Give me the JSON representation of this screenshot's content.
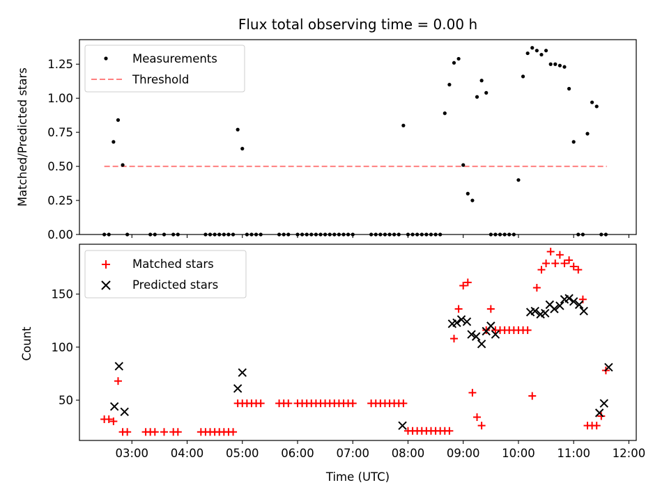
{
  "figure": {
    "title": "Flux total observing time = 0.00 h",
    "xlabel": "Time (UTC)"
  },
  "colors": {
    "measurement": "#000000",
    "threshold": "#ff7f7f",
    "matched": "#ff0000",
    "predicted": "#000000"
  },
  "chart_data": [
    {
      "type": "scatter",
      "panel": "top",
      "ylabel": "Matched/Predicted stars",
      "xlim": [
        "02:03",
        "12:08"
      ],
      "ylim": [
        0,
        1.43
      ],
      "x_ticks": [
        "03:00",
        "04:00",
        "05:00",
        "06:00",
        "07:00",
        "08:00",
        "09:00",
        "10:00",
        "11:00",
        "12:00"
      ],
      "y_ticks": [
        "0.00",
        "0.25",
        "0.50",
        "0.75",
        "1.00",
        "1.25"
      ],
      "legend": {
        "location": "upper left",
        "entries": [
          "Measurements",
          "Threshold"
        ]
      },
      "series": [
        {
          "name": "Measurements",
          "x": [
            "02:30",
            "02:35",
            "02:40",
            "02:45",
            "02:50",
            "02:55",
            "03:20",
            "03:25",
            "03:35",
            "03:45",
            "03:50",
            "04:20",
            "04:25",
            "04:30",
            "04:35",
            "04:40",
            "04:45",
            "04:50",
            "04:55",
            "05:00",
            "05:05",
            "05:10",
            "05:15",
            "05:20",
            "05:40",
            "05:45",
            "05:50",
            "06:00",
            "06:05",
            "06:10",
            "06:15",
            "06:20",
            "06:25",
            "06:30",
            "06:35",
            "06:40",
            "06:45",
            "06:50",
            "06:55",
            "07:00",
            "07:20",
            "07:25",
            "07:30",
            "07:35",
            "07:40",
            "07:45",
            "07:50",
            "07:55",
            "08:00",
            "08:05",
            "08:10",
            "08:15",
            "08:20",
            "08:25",
            "08:30",
            "08:35",
            "08:40",
            "08:45",
            "08:50",
            "08:55",
            "09:00",
            "09:05",
            "09:10",
            "09:15",
            "09:20",
            "09:25",
            "09:30",
            "09:35",
            "09:40",
            "09:45",
            "09:50",
            "09:55",
            "10:00",
            "10:05",
            "10:10",
            "10:15",
            "10:20",
            "10:25",
            "10:30",
            "10:35",
            "10:40",
            "10:45",
            "10:50",
            "10:55",
            "11:00",
            "11:05",
            "11:10",
            "11:15",
            "11:20",
            "11:25",
            "11:30",
            "11:35"
          ],
          "y": [
            0.0,
            0.0,
            0.68,
            0.84,
            0.51,
            0.0,
            0.0,
            0.0,
            0.0,
            0.0,
            0.0,
            0.0,
            0.0,
            0.0,
            0.0,
            0.0,
            0.0,
            0.0,
            0.77,
            0.63,
            0.0,
            0.0,
            0.0,
            0.0,
            0.0,
            0.0,
            0.0,
            0.0,
            0.0,
            0.0,
            0.0,
            0.0,
            0.0,
            0.0,
            0.0,
            0.0,
            0.0,
            0.0,
            0.0,
            0.0,
            0.0,
            0.0,
            0.0,
            0.0,
            0.0,
            0.0,
            0.0,
            0.8,
            0.0,
            0.0,
            0.0,
            0.0,
            0.0,
            0.0,
            0.0,
            0.0,
            0.89,
            1.1,
            1.26,
            1.29,
            0.51,
            0.3,
            0.25,
            1.01,
            1.13,
            1.04,
            0.0,
            0.0,
            0.0,
            0.0,
            0.0,
            0.0,
            0.4,
            1.16,
            1.33,
            1.37,
            1.35,
            1.32,
            1.35,
            1.25,
            1.25,
            1.24,
            1.23,
            1.07,
            0.68,
            0.0,
            0.0,
            0.74,
            0.97,
            0.94,
            0.0,
            0.0
          ]
        },
        {
          "name": "Threshold",
          "x": [
            "02:30",
            "11:36"
          ],
          "y": [
            0.5,
            0.5
          ]
        }
      ]
    },
    {
      "type": "scatter",
      "panel": "bottom",
      "ylabel": "Count",
      "xlim": [
        "02:03",
        "12:08"
      ],
      "ylim": [
        12,
        197
      ],
      "x_ticks": [
        "03:00",
        "04:00",
        "05:00",
        "06:00",
        "07:00",
        "08:00",
        "09:00",
        "10:00",
        "11:00",
        "12:00"
      ],
      "y_ticks": [
        "50",
        "100",
        "150"
      ],
      "legend": {
        "location": "upper left",
        "entries": [
          "Matched stars",
          "Predicted stars"
        ]
      },
      "series": [
        {
          "name": "Matched stars",
          "x": [
            "02:30",
            "02:35",
            "02:40",
            "02:45",
            "02:50",
            "02:55",
            "03:15",
            "03:20",
            "03:25",
            "03:35",
            "03:45",
            "03:50",
            "04:15",
            "04:20",
            "04:25",
            "04:30",
            "04:35",
            "04:40",
            "04:45",
            "04:50",
            "04:55",
            "05:00",
            "05:05",
            "05:10",
            "05:15",
            "05:20",
            "05:40",
            "05:45",
            "05:50",
            "06:00",
            "06:05",
            "06:10",
            "06:15",
            "06:20",
            "06:25",
            "06:30",
            "06:35",
            "06:40",
            "06:45",
            "06:50",
            "06:55",
            "07:00",
            "07:20",
            "07:25",
            "07:30",
            "07:35",
            "07:40",
            "07:45",
            "07:50",
            "07:55",
            "08:00",
            "08:05",
            "08:10",
            "08:15",
            "08:20",
            "08:25",
            "08:30",
            "08:35",
            "08:40",
            "08:45",
            "08:50",
            "08:55",
            "09:00",
            "09:05",
            "09:10",
            "09:15",
            "09:20",
            "09:25",
            "09:30",
            "09:35",
            "09:40",
            "09:45",
            "09:50",
            "09:55",
            "10:00",
            "10:05",
            "10:10",
            "10:15",
            "10:20",
            "10:25",
            "10:30",
            "10:35",
            "10:40",
            "10:45",
            "10:50",
            "10:55",
            "11:00",
            "11:05",
            "11:10",
            "11:15",
            "11:20",
            "11:25",
            "11:30",
            "11:35"
          ],
          "y": [
            32,
            32,
            30,
            68,
            20,
            20,
            20,
            20,
            20,
            20,
            20,
            20,
            20,
            20,
            20,
            20,
            20,
            20,
            20,
            20,
            47,
            47,
            47,
            47,
            47,
            47,
            47,
            47,
            47,
            47,
            47,
            47,
            47,
            47,
            47,
            47,
            47,
            47,
            47,
            47,
            47,
            47,
            47,
            47,
            47,
            47,
            47,
            47,
            47,
            47,
            21,
            21,
            21,
            21,
            21,
            21,
            21,
            21,
            21,
            21,
            108,
            136,
            158,
            161,
            57,
            34,
            26,
            116,
            136,
            116,
            116,
            116,
            116,
            116,
            116,
            116,
            116,
            54,
            156,
            173,
            179,
            190,
            179,
            187,
            179,
            182,
            176,
            173,
            145,
            26,
            26,
            26,
            35,
            78
          ]
        },
        {
          "name": "Predicted stars",
          "x": [
            "02:41",
            "02:46",
            "02:52",
            "04:55",
            "05:00",
            "07:54",
            "08:48",
            "08:53",
            "08:58",
            "09:04",
            "09:09",
            "09:14",
            "09:20",
            "09:25",
            "09:30",
            "09:35",
            "10:13",
            "10:18",
            "10:24",
            "10:29",
            "10:34",
            "10:39",
            "10:45",
            "10:50",
            "10:55",
            "11:00",
            "11:06",
            "11:11",
            "11:28",
            "11:33",
            "11:38"
          ],
          "y": [
            44,
            82,
            39,
            61,
            76,
            26,
            122,
            123,
            126,
            124,
            112,
            110,
            103,
            115,
            120,
            112,
            133,
            134,
            131,
            132,
            140,
            136,
            139,
            145,
            146,
            143,
            140,
            134,
            38,
            47,
            81
          ]
        }
      ]
    }
  ]
}
